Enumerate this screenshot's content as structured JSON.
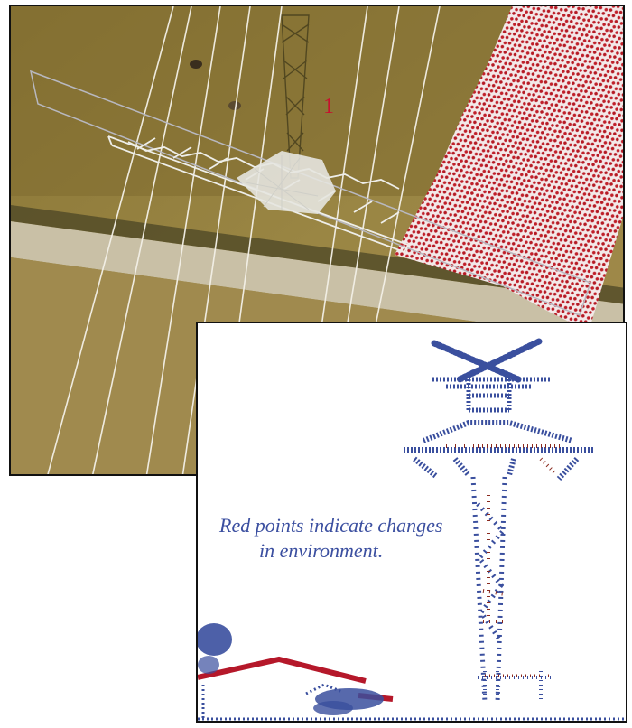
{
  "aerial": {
    "marker_label": "1",
    "colors": {
      "ground": "#8d7a3a",
      "road": "#c8bfa4",
      "roof_points": "#c0202a",
      "tower_points": "#e8e8e4"
    }
  },
  "pointcloud": {
    "caption_line1": "Red points indicate changes",
    "caption_line2": "in environment.",
    "colors": {
      "unchanged": "#3a4f9e",
      "changed": "#8a2a1e"
    }
  }
}
